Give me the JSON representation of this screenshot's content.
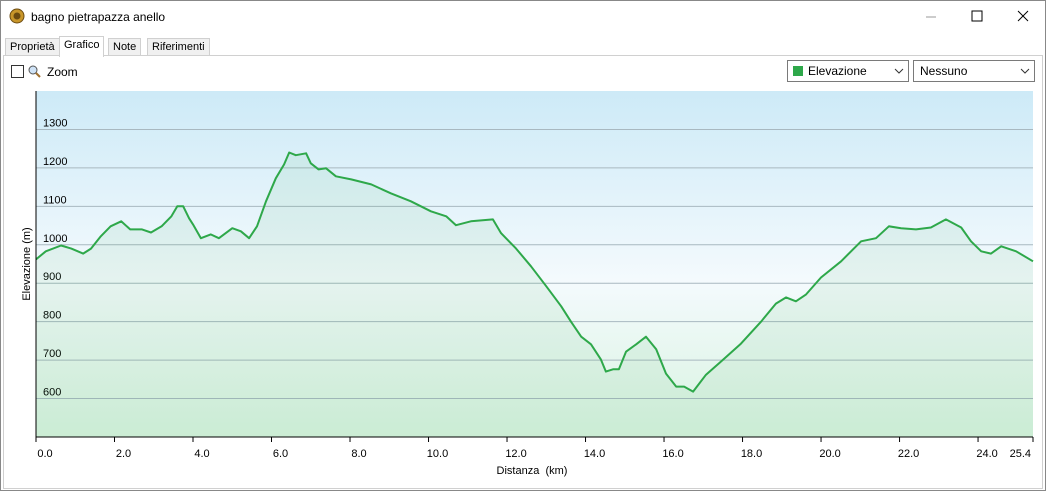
{
  "window": {
    "title": "bagno pietrapazza anello"
  },
  "tabs": [
    "Proprietà",
    "Grafico",
    "Note",
    "Riferimenti"
  ],
  "toolbar": {
    "zoom_label": "Zoom",
    "dropdown_1": "Elevazione",
    "dropdown_2": "Nessuno"
  },
  "chart_data": {
    "type": "line",
    "x_label": "Distanza  (km)",
    "y_label": "Elevazione (m)",
    "color": "#2ea84a",
    "x": [
      0,
      0.25,
      0.64,
      0.9,
      1.2,
      1.4,
      1.65,
      1.9,
      2.17,
      2.4,
      2.7,
      2.93,
      3.2,
      3.45,
      3.6,
      3.75,
      3.9,
      4.0,
      4.2,
      4.45,
      4.66,
      5.0,
      5.22,
      5.43,
      5.63,
      5.86,
      6.11,
      6.32,
      6.45,
      6.62,
      6.88,
      7.0,
      7.2,
      7.39,
      7.64,
      8.03,
      8.54,
      9.04,
      9.55,
      10.06,
      10.45,
      10.7,
      11.08,
      11.64,
      11.85,
      12.23,
      12.61,
      13.0,
      13.38,
      13.63,
      13.89,
      14.14,
      14.39,
      14.52,
      14.7,
      14.85,
      15.03,
      15.29,
      15.54,
      15.8,
      16.05,
      16.31,
      16.51,
      16.74,
      17.07,
      17.45,
      17.96,
      18.47,
      18.85,
      19.11,
      19.36,
      19.62,
      20.0,
      20.51,
      21.02,
      21.4,
      21.73,
      22.04,
      22.42,
      22.8,
      23.18,
      23.57,
      23.82,
      24.08,
      24.33,
      24.59,
      24.97,
      25.4
    ],
    "values": [
      962,
      983,
      998,
      990,
      977,
      990,
      1022,
      1048,
      1061,
      1040,
      1040,
      1032,
      1048,
      1074,
      1100,
      1100,
      1069,
      1053,
      1017,
      1027,
      1017,
      1043,
      1035,
      1017,
      1048,
      1113,
      1173,
      1209,
      1240,
      1233,
      1238,
      1212,
      1196,
      1199,
      1178,
      1170,
      1157,
      1134,
      1113,
      1087,
      1074,
      1051,
      1061,
      1066,
      1030,
      990,
      944,
      892,
      840,
      800,
      761,
      741,
      702,
      670,
      676,
      676,
      722,
      741,
      761,
      728,
      665,
      631,
      631,
      618,
      662,
      696,
      743,
      800,
      847,
      863,
      853,
      871,
      915,
      957,
      1009,
      1017,
      1048,
      1043,
      1040,
      1045,
      1066,
      1045,
      1009,
      983,
      977,
      996,
      983,
      957
    ],
    "xlim": [
      0,
      25.4
    ],
    "ylim": [
      500,
      1400
    ],
    "xticks": [
      {
        "value": 0,
        "label": "0.0"
      },
      {
        "value": 2,
        "label": "2.0"
      },
      {
        "value": 4,
        "label": "4.0"
      },
      {
        "value": 6,
        "label": "6.0"
      },
      {
        "value": 8,
        "label": "8.0"
      },
      {
        "value": 10,
        "label": "10.0"
      },
      {
        "value": 12,
        "label": "12.0"
      },
      {
        "value": 14,
        "label": "14.0"
      },
      {
        "value": 16,
        "label": "16.0"
      },
      {
        "value": 18,
        "label": "18.0"
      },
      {
        "value": 20,
        "label": "20.0"
      },
      {
        "value": 22,
        "label": "22.0"
      },
      {
        "value": 24,
        "label": "24.0"
      },
      25.4
    ],
    "yticks": [
      600,
      700,
      800,
      900,
      1000,
      1100,
      1200,
      1300
    ],
    "grid": true
  }
}
